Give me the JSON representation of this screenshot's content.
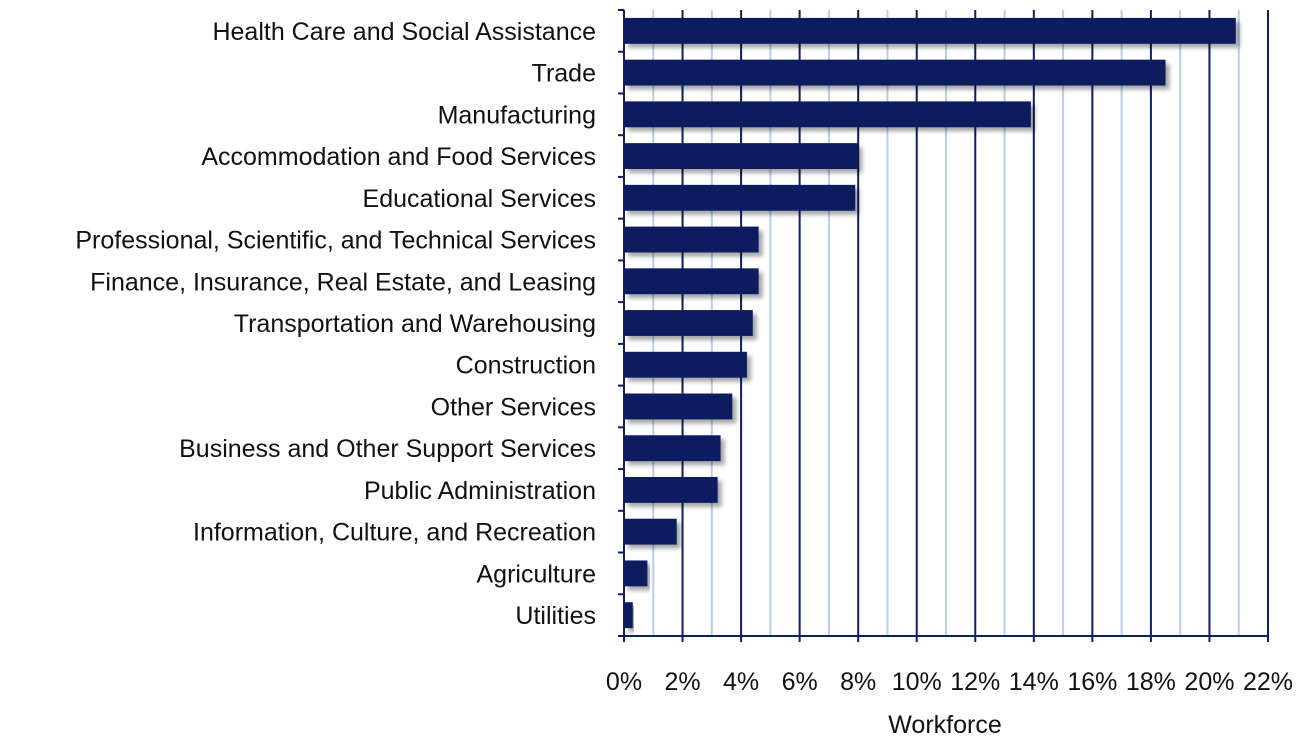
{
  "chart_data": {
    "type": "bar",
    "orientation": "horizontal",
    "categories": [
      "Health Care and Social Assistance",
      "Trade",
      "Manufacturing",
      "Accommodation and Food Services",
      "Educational Services",
      "Professional, Scientific, and Technical Services",
      "Finance, Insurance, Real Estate, and Leasing",
      "Transportation and Warehousing",
      "Construction",
      "Other Services",
      "Business and Other Support Services",
      "Public Administration",
      "Information, Culture, and Recreation",
      "Agriculture",
      "Utilities"
    ],
    "values": [
      20.9,
      18.5,
      13.9,
      8.0,
      7.9,
      4.6,
      4.6,
      4.4,
      4.2,
      3.7,
      3.3,
      3.2,
      1.8,
      0.8,
      0.3
    ],
    "xlabel": "Workforce",
    "ylabel": "",
    "title": "",
    "xlim": [
      0,
      22
    ],
    "xticks": [
      "0%",
      "2%",
      "4%",
      "6%",
      "8%",
      "10%",
      "12%",
      "14%",
      "16%",
      "18%",
      "20%",
      "22%"
    ],
    "grid": "vertical",
    "legend": "none",
    "colors": {
      "bar": "#0c1f5e",
      "major_grid": "#0c1f5e",
      "minor_grid": "#b8cfe8"
    }
  }
}
